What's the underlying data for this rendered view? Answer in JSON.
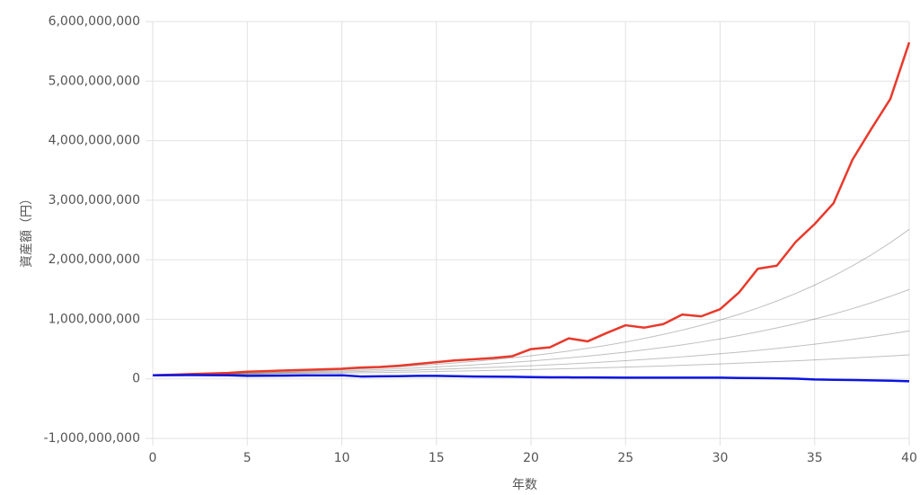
{
  "chart_data": {
    "type": "line",
    "x_label": "年数",
    "y_label": "資産額（円）",
    "x": [
      0,
      1,
      2,
      3,
      4,
      5,
      6,
      7,
      8,
      9,
      10,
      11,
      12,
      13,
      14,
      15,
      16,
      17,
      18,
      19,
      20,
      21,
      22,
      23,
      24,
      25,
      26,
      27,
      28,
      29,
      30,
      31,
      32,
      33,
      34,
      35,
      36,
      37,
      38,
      39,
      40
    ],
    "xlim": [
      0,
      40
    ],
    "xticks": [
      0,
      5,
      10,
      15,
      20,
      25,
      30,
      35,
      40
    ],
    "ylim": [
      -1000000000,
      6000000000
    ],
    "yticks": [
      {
        "value": -1000000000,
        "label": "-1,000,000,000"
      },
      0,
      {
        "value": 1000000000,
        "label": "1,000,000,000"
      },
      {
        "value": 2000000000,
        "label": "2,000,000,000"
      },
      {
        "value": 3000000000,
        "label": "3,000,000,000"
      },
      {
        "value": 4000000000,
        "label": "4,000,000,000"
      },
      {
        "value": 5000000000,
        "label": "5,000,000,000"
      },
      {
        "value": 6000000000,
        "label": "6,000,000,000"
      }
    ],
    "grid": true,
    "series": [
      {
        "color": "#000000",
        "values": [
          60000000.0,
          63000000.0,
          66000000.0,
          69000000.0,
          73000000.0,
          76000000.0,
          80000000.0,
          84000000.0,
          88000000.0,
          92000000.0,
          97000000.0,
          101000000.0,
          106000000.0,
          112000000.0,
          117000000.0,
          123000000.0,
          129000000.0,
          135000000.0,
          142000000.0,
          148000000.0,
          156000000.0,
          163000000.0,
          171000000.0,
          180000000.0,
          188000000.0,
          197000000.0,
          207000000.0,
          217000000.0,
          228000000.0,
          239000000.0,
          251000000.0,
          263000000.0,
          276000000.0,
          289000000.0,
          303000000.0,
          318000000.0,
          333000000.0,
          350000000.0,
          367000000.0,
          385000000.0,
          403000000.0
        ]
      },
      {
        "color": "#000000",
        "values": [
          60000000.0,
          64000000.0,
          68000000.0,
          73000000.0,
          78000000.0,
          83000000.0,
          89000000.0,
          95000000.0,
          101000000.0,
          108000000.0,
          115000000.0,
          123000000.0,
          131000000.0,
          140000000.0,
          149000000.0,
          159000000.0,
          170000000.0,
          182000000.0,
          194000000.0,
          207000000.0,
          220000000.0,
          235000000.0,
          251000000.0,
          268000000.0,
          286000000.0,
          305000000.0,
          325000000.0,
          347000000.0,
          370000000.0,
          395000000.0,
          421000000.0,
          449000000.0,
          479000000.0,
          511000000.0,
          546000000.0,
          582000000.0,
          621000000.0,
          663000000.0,
          707000000.0,
          754000000.0,
          805000000.0
        ]
      },
      {
        "color": "#000000",
        "values": [
          60000000.0,
          65000000.0,
          70000000.0,
          76000000.0,
          83000000.0,
          90000000.0,
          97000000.0,
          105000000.0,
          114000000.0,
          124000000.0,
          134000000.0,
          145000000.0,
          158000000.0,
          171000000.0,
          185000000.0,
          201000000.0,
          218000000.0,
          236000000.0,
          256000000.0,
          277000000.0,
          300000000.0,
          325000000.0,
          353000000.0,
          382000000.0,
          414000000.0,
          449000000.0,
          487000000.0,
          527000000.0,
          571000000.0,
          619000000.0,
          671000000.0,
          728000000.0,
          789000000.0,
          855000000.0,
          926000000.0,
          1004000000.0,
          1088000000.0,
          1179000000.0,
          1278000000.0,
          1385000000.0,
          1501000000.0
        ]
      },
      {
        "color": "#000000",
        "values": [
          60000000.0,
          66000000.0,
          72000000.0,
          79000000.0,
          87000000.0,
          96000000.0,
          105000000.0,
          115000000.0,
          127000000.0,
          139000000.0,
          153000000.0,
          168000000.0,
          184000000.0,
          202000000.0,
          222000000.0,
          244000000.0,
          267000000.0,
          294000000.0,
          322000000.0,
          354000000.0,
          388000000.0,
          426000000.0,
          468000000.0,
          514000000.0,
          564000000.0,
          619000000.0,
          680000000.0,
          746000000.0,
          819000000.0,
          899000000.0,
          987000000.0,
          1084000000.0,
          1190000000.0,
          1306000000.0,
          1434000000.0,
          1574000000.0,
          1728000000.0,
          1897000000.0,
          2083000000.0,
          2286000000.0,
          2510000000.0
        ]
      },
      {
        "color": "#e8392b",
        "values": [
          60000000.0,
          70000000.0,
          80000000.0,
          90000000.0,
          100000000.0,
          120000000.0,
          130000000.0,
          140000000.0,
          150000000.0,
          160000000.0,
          170000000.0,
          190000000.0,
          200000000.0,
          220000000.0,
          250000000.0,
          280000000.0,
          310000000.0,
          330000000.0,
          350000000.0,
          380000000.0,
          500000000.0,
          530000000.0,
          680000000.0,
          630000000.0,
          770000000.0,
          900000000.0,
          860000000.0,
          920000000.0,
          1080000000.0,
          1050000000.0,
          1170000000.0,
          1450000000.0,
          1850000000.0,
          1900000000.0,
          2300000000.0,
          2600000000.0,
          2950000000.0,
          3680000000.0,
          4200000000.0,
          4700000000.0,
          5650000000.0
        ]
      },
      {
        "color": "#0a14e0",
        "values": [
          60000000.0,
          62000000.0,
          63000000.0,
          62000000.0,
          60000000.0,
          50000000.0,
          52000000.0,
          55000000.0,
          57000000.0,
          58000000.0,
          60000000.0,
          40000000.0,
          42000000.0,
          45000000.0,
          50000000.0,
          50000000.0,
          45000000.0,
          40000000.0,
          38000000.0,
          35000000.0,
          30000000.0,
          25000000.0,
          25000000.0,
          24000000.0,
          22000000.0,
          20000000.0,
          20000000.0,
          20000000.0,
          20000000.0,
          20000000.0,
          20000000.0,
          15000000.0,
          12000000.0,
          8000000.0,
          4000000.0,
          -10000000.0,
          -15000000.0,
          -20000000.0,
          -25000000.0,
          -30000000.0,
          -40000000.0
        ]
      }
    ]
  }
}
